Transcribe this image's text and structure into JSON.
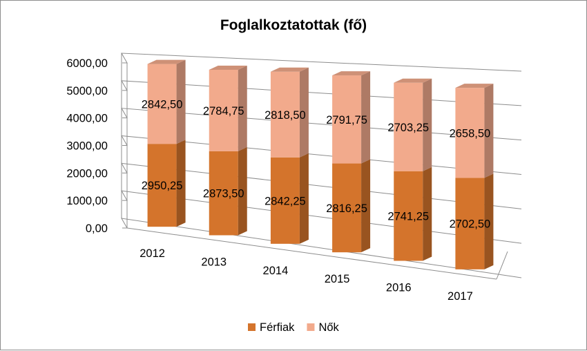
{
  "chart_data": {
    "type": "bar",
    "stacked": true,
    "three_d": true,
    "title": "Foglalkoztatottak (fő)",
    "categories": [
      "2012",
      "2013",
      "2014",
      "2015",
      "2016",
      "2017"
    ],
    "series": [
      {
        "name": "Férfiak",
        "values": [
          2950.25,
          2873.5,
          2842.25,
          2816.25,
          2741.25,
          2702.5
        ],
        "labels": [
          "2950,25",
          "2873,50",
          "2842,25",
          "2816,25",
          "2741,25",
          "2702,50"
        ],
        "color": "#D4742C"
      },
      {
        "name": "Nők",
        "values": [
          2842.5,
          2784.75,
          2818.5,
          2791.75,
          2703.25,
          2658.5
        ],
        "labels": [
          "2842,50",
          "2784,75",
          "2818,50",
          "2791,75",
          "2703,25",
          "2658,50"
        ],
        "color": "#F2AA8C"
      }
    ],
    "ylim": [
      0,
      6000
    ],
    "yticks": [
      "0,00",
      "1000,00",
      "2000,00",
      "3000,00",
      "4000,00",
      "5000,00",
      "6000,00"
    ],
    "grid": true,
    "legend_position": "bottom"
  }
}
